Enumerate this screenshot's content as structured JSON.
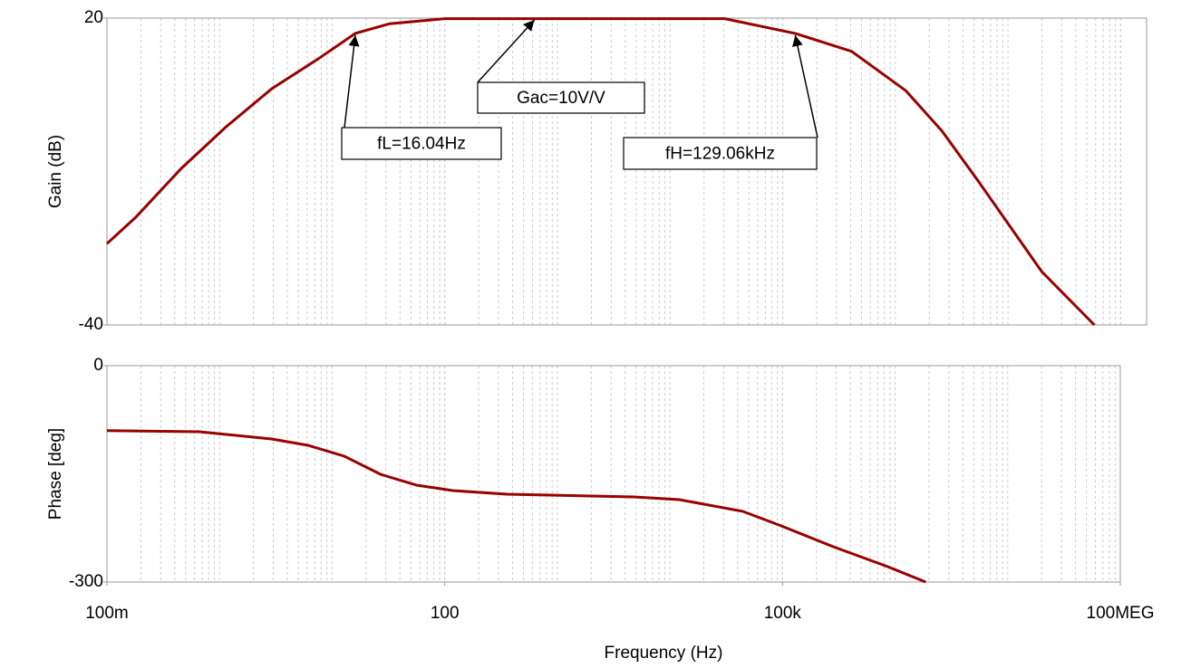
{
  "chart_data": [
    {
      "type": "line",
      "ylabel": "Gain (dB)",
      "log_x": true,
      "grid": true,
      "color": "#990000",
      "xlim": [
        0.1,
        170000000
      ],
      "ylim": [
        -40,
        20
      ],
      "yticks": [
        -40,
        20
      ],
      "x": [
        0.1,
        0.181,
        0.457,
        1.15,
        2.91,
        7.35,
        16.04,
        32.3,
        100,
        30550,
        129060,
        408000,
        1240000,
        2600000,
        5460000,
        19950000,
        58500000
      ],
      "values": [
        -24.1,
        -18.9,
        -9.4,
        -1.2,
        6.2,
        11.9,
        17,
        18.9,
        19.9,
        19.9,
        17,
        13.5,
        5.8,
        -2.1,
        -11.9,
        -29.6,
        -40
      ],
      "annotations": [
        {
          "text": "Gac=10V/V",
          "x": 625,
          "y": 20
        },
        {
          "text": "fL=16.04Hz",
          "x": 16.04,
          "y": 17
        },
        {
          "text": "fH=129.06kHz",
          "x": 129060,
          "y": 17
        }
      ]
    },
    {
      "type": "line",
      "ylabel": "Phase [deg]",
      "xlabel": "Frequency (Hz)",
      "log_x": true,
      "grid": true,
      "color": "#990000",
      "xlim": [
        0.1,
        100000000
      ],
      "ylim": [
        -300,
        0
      ],
      "yticks": [
        -300,
        0
      ],
      "xticks": [
        {
          "value": 0.1,
          "label": "100m"
        },
        100,
        {
          "value": 100000,
          "label": "100k"
        },
        {
          "value": 100000000,
          "label": "100MEG"
        }
      ],
      "x": [
        0.1,
        0.66,
        2.91,
        6.1,
        12.8,
        26.9,
        56.3,
        118,
        359,
        4797,
        12100,
        44260,
        92900,
        282000,
        858000,
        1870000
      ],
      "values": [
        -90,
        -91.6,
        -101.7,
        -110.5,
        -125.5,
        -150.6,
        -165.7,
        -173.2,
        -178.2,
        -182,
        -185.8,
        -202,
        -220.9,
        -251,
        -278.7,
        -300
      ]
    }
  ]
}
